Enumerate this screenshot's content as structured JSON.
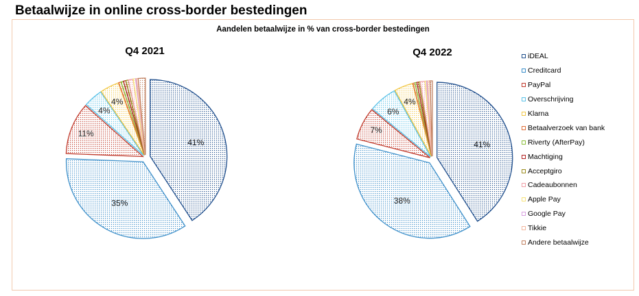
{
  "page_title": "Betaalwijze in online cross-border bestedingen",
  "chart_title": "Aandelen betaalwijze in % van cross-border bestedingen",
  "colors": {
    "iDEAL": "#1f4e8c",
    "Creditcard": "#3b8ec9",
    "PayPal": "#c0392b",
    "Overschrijving": "#5ac2e8",
    "Klarna": "#f2c744",
    "Betaalverzoek van bank": "#e0703a",
    "Riverty (AfterPay)": "#8bbf3a",
    "Machtiging": "#b22222",
    "Acceptgiro": "#9a8a1a",
    "Cadeaubonnen": "#f0a0a8",
    "Apple Pay": "#f7e27a",
    "Google Pay": "#d8a0e0",
    "Tikkie": "#f4b8a0",
    "Andere betaalwijze": "#c08060"
  },
  "chart_data": [
    {
      "type": "pie",
      "title": "Q4 2021",
      "categories": [
        "iDEAL",
        "Creditcard",
        "PayPal",
        "Overschrijving",
        "Klarna",
        "Betaalverzoek van bank",
        "Riverty (AfterPay)",
        "Machtiging",
        "Acceptgiro",
        "Cadeaubonnen",
        "Apple Pay",
        "Google Pay",
        "Tikkie",
        "Andere betaalwijze"
      ],
      "values": [
        41,
        35,
        11,
        4,
        4,
        0.5,
        0.5,
        0.5,
        0.5,
        1,
        0.5,
        0.2,
        0.3,
        1.5
      ],
      "labels": [
        "41%",
        "35%",
        "11%",
        "4%",
        "4%",
        "",
        "",
        "",
        "",
        "",
        "",
        "",
        "",
        ""
      ],
      "exploded": true
    },
    {
      "type": "pie",
      "title": "Q4 2022",
      "categories": [
        "iDEAL",
        "Creditcard",
        "PayPal",
        "Overschrijving",
        "Klarna",
        "Betaalverzoek van bank",
        "Riverty (AfterPay)",
        "Machtiging",
        "Acceptgiro",
        "Cadeaubonnen",
        "Apple Pay",
        "Google Pay",
        "Tikkie",
        "Andere betaalwijze"
      ],
      "values": [
        41,
        38,
        7,
        6,
        4,
        0.4,
        0.4,
        0.4,
        0.3,
        1,
        0.3,
        0.2,
        0.5,
        0.5
      ],
      "labels": [
        "41%",
        "38%",
        "7%",
        "6%",
        "4%",
        "",
        "",
        "",
        "",
        "",
        "",
        "",
        "",
        ""
      ],
      "exploded": true
    }
  ],
  "legend": [
    "iDEAL",
    "Creditcard",
    "PayPal",
    "Overschrijving",
    "Klarna",
    "Betaalverzoek van bank",
    "Riverty (AfterPay)",
    "Machtiging",
    "Acceptgiro",
    "Cadeaubonnen",
    "Apple Pay",
    "Google Pay",
    "Tikkie",
    "Andere betaalwijze"
  ]
}
